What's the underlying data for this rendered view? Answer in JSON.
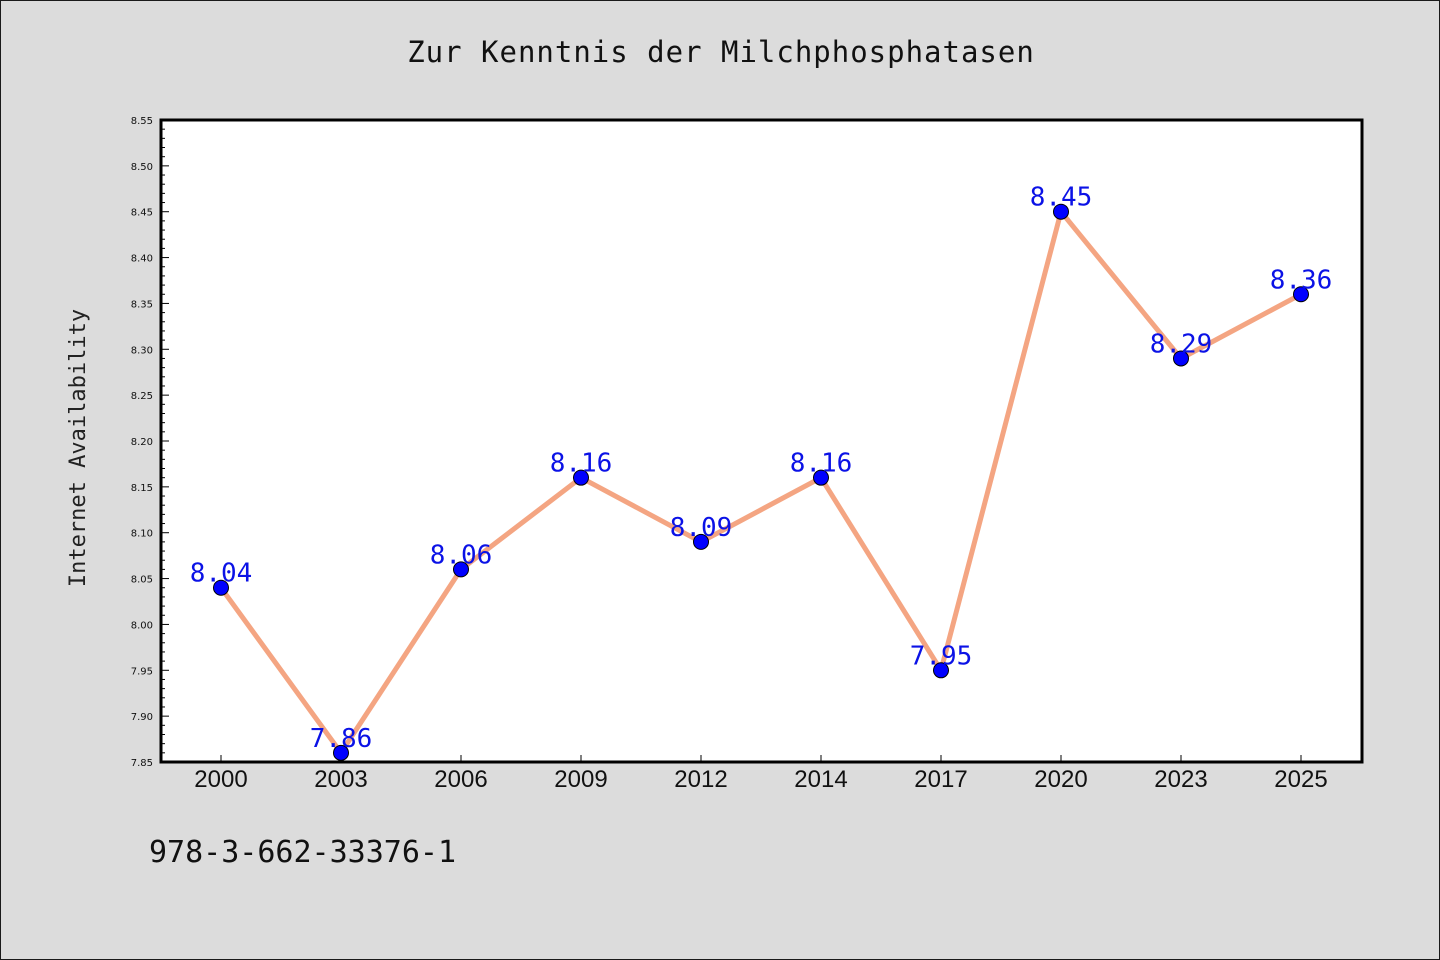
{
  "chart_data": {
    "type": "line",
    "title": "Zur Kenntnis der Milchphosphatasen",
    "xlabel": "",
    "ylabel": "Internet Availability",
    "categories": [
      "2000",
      "2003",
      "2006",
      "2009",
      "2012",
      "2014",
      "2017",
      "2020",
      "2023",
      "2025"
    ],
    "series": [
      {
        "values": [
          8.04,
          7.86,
          8.06,
          8.16,
          8.09,
          8.16,
          7.95,
          8.45,
          8.29,
          8.36
        ],
        "data_labels": [
          "8.04",
          "7.86",
          "8.06",
          "8.16",
          "8.09",
          "8.16",
          "7.95",
          "8.45",
          "8.29",
          "8.36"
        ]
      }
    ],
    "ylim": [
      7.85,
      8.55
    ],
    "yticks": [
      "7.85",
      "7.90",
      "7.95",
      "8.00",
      "8.05",
      "8.10",
      "8.15",
      "8.20",
      "8.25",
      "8.30",
      "8.35",
      "8.40",
      "8.45",
      "8.50",
      "8.55"
    ],
    "grid": false,
    "legend": "none",
    "colors": {
      "line": "#f4a582",
      "marker": "#0000ff",
      "data_label": "#0b12e6",
      "background": "#dcdcdc",
      "plot_background": "#ffffff"
    }
  },
  "footer": {
    "code": "978-3-662-33376-1"
  }
}
